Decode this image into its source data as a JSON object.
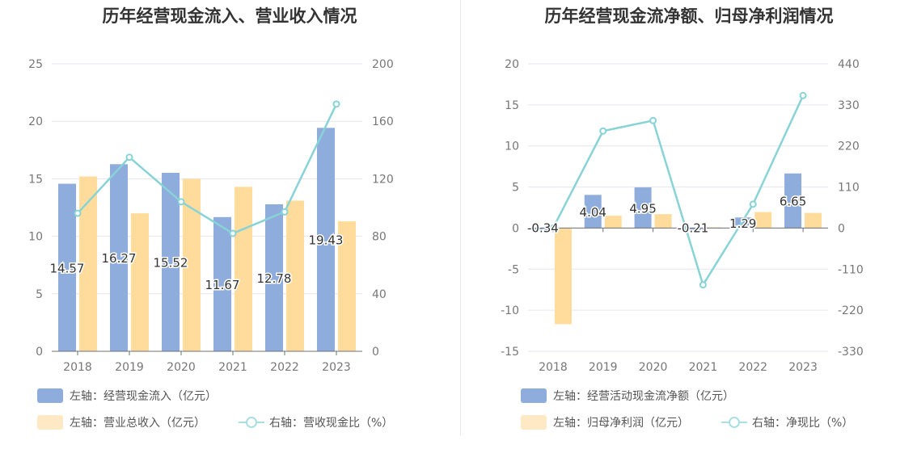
{
  "chart_data": [
    {
      "type": "bar",
      "title": "历年经营现金流入、营业收入情况",
      "categories": [
        "2018",
        "2019",
        "2020",
        "2021",
        "2022",
        "2023"
      ],
      "y_left": {
        "ylim": [
          0,
          25
        ],
        "ticks": [
          "0",
          "5",
          "10",
          "15",
          "20",
          "25"
        ]
      },
      "y_right": {
        "ylim": [
          0,
          200
        ],
        "ticks": [
          "0",
          "40",
          "80",
          "120",
          "160",
          "200"
        ]
      },
      "series": [
        {
          "name": "左轴：经营现金流入（亿元）",
          "type": "bar",
          "axis": "left",
          "color": "#8eacdc",
          "values": [
            14.57,
            16.27,
            15.52,
            11.67,
            12.78,
            19.43
          ],
          "labels": [
            "14.57",
            "16.27",
            "15.52",
            "11.67",
            "12.78",
            "19.43"
          ]
        },
        {
          "name": "左轴：营业总收入（亿元）",
          "type": "bar",
          "axis": "left",
          "color": "#ffdc9c",
          "values": [
            15.2,
            12.0,
            15.0,
            14.3,
            13.1,
            11.3
          ]
        },
        {
          "name": "右轴：营收现金比（%）",
          "type": "line",
          "axis": "right",
          "color": "#88d3d6",
          "values": [
            96,
            135,
            104,
            82,
            97,
            172
          ]
        }
      ]
    },
    {
      "type": "bar",
      "title": "历年经营现金流净额、归母净利润情况",
      "categories": [
        "2018",
        "2019",
        "2020",
        "2021",
        "2022",
        "2023"
      ],
      "y_left": {
        "ylim": [
          -15,
          20
        ],
        "ticks": [
          "-15",
          "-10",
          "-5",
          "0",
          "5",
          "10",
          "15",
          "20"
        ]
      },
      "y_right": {
        "ylim": [
          -330,
          440
        ],
        "ticks": [
          "-330",
          "-220",
          "-110",
          "0",
          "110",
          "220",
          "330",
          "440"
        ]
      },
      "series": [
        {
          "name": "左轴：经营活动现金流净额（亿元）",
          "type": "bar",
          "axis": "left",
          "color": "#8eacdc",
          "values": [
            -0.34,
            4.04,
            4.95,
            -0.21,
            1.29,
            6.65
          ],
          "labels": [
            "-0.34",
            "4.04",
            "4.95",
            "-0.21",
            "1.29",
            "6.65"
          ]
        },
        {
          "name": "左轴：归母净利润（亿元）",
          "type": "bar",
          "axis": "left",
          "color": "#ffdc9c",
          "values": [
            -11.7,
            1.5,
            1.7,
            0.1,
            1.95,
            1.85
          ]
        },
        {
          "name": "右轴：净现比（%）",
          "type": "line",
          "axis": "right",
          "color": "#88d3d6",
          "values": [
            0,
            260,
            288,
            -152,
            64,
            355
          ]
        }
      ]
    }
  ]
}
